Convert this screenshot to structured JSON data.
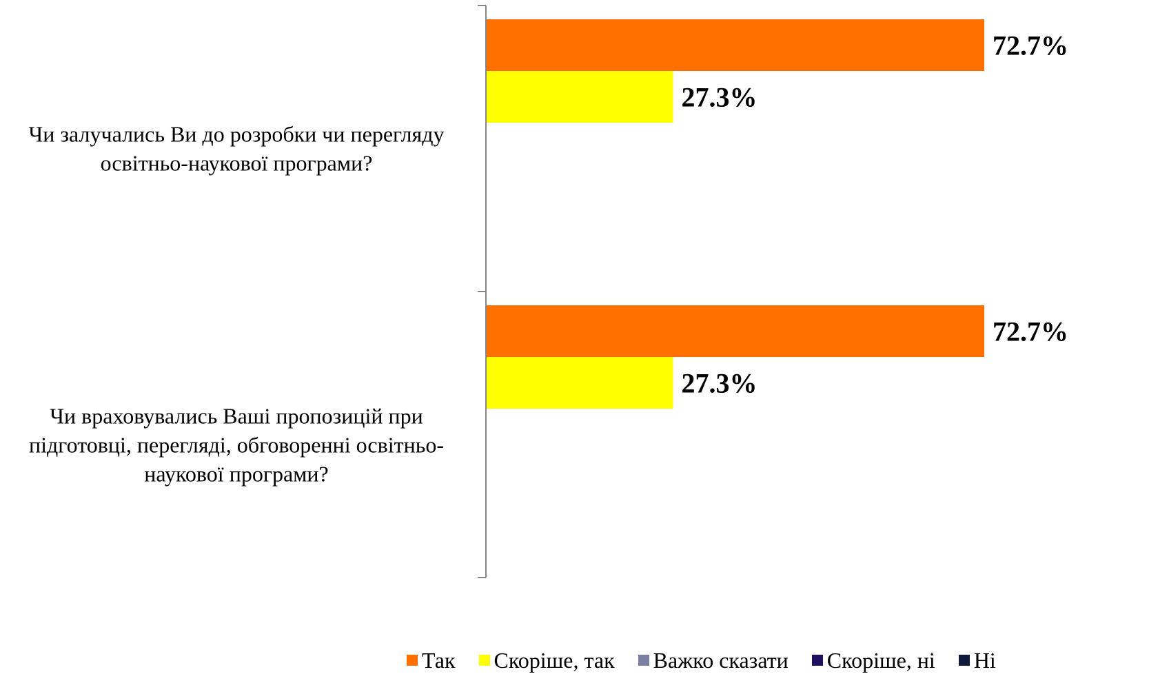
{
  "chart_data": {
    "type": "bar",
    "orientation": "horizontal",
    "categories": [
      [
        "Чи залучались Ви до розробки чи перегляду",
        "освітньо-наукової програми?"
      ],
      [
        "Чи враховувались Ваші пропозицій при",
        "підготовці, перегляді, обговоренні освітньо-",
        "наукової програми?"
      ]
    ],
    "series": [
      {
        "name": "Так",
        "color": "#ff7000",
        "values": [
          72.7,
          72.7
        ],
        "labels": [
          "72.7%",
          "72.7%"
        ]
      },
      {
        "name": "Скоріше, так",
        "color": "#ffff00",
        "values": [
          27.3,
          27.3
        ],
        "labels": [
          "27.3%",
          "27.3%"
        ]
      },
      {
        "name": "Важко сказати",
        "color": "#7b7fa3",
        "values": [
          0,
          0
        ],
        "labels": [
          "",
          ""
        ]
      },
      {
        "name": "Скоріше, ні",
        "color": "#1f0f5e",
        "values": [
          0,
          0
        ],
        "labels": [
          "",
          ""
        ]
      },
      {
        "name": "Ні",
        "color": "#0d1a3b",
        "values": [
          0,
          0
        ],
        "labels": [
          "",
          ""
        ]
      }
    ],
    "xlim": [
      0,
      100
    ],
    "grid": false,
    "legend_position": "bottom"
  }
}
